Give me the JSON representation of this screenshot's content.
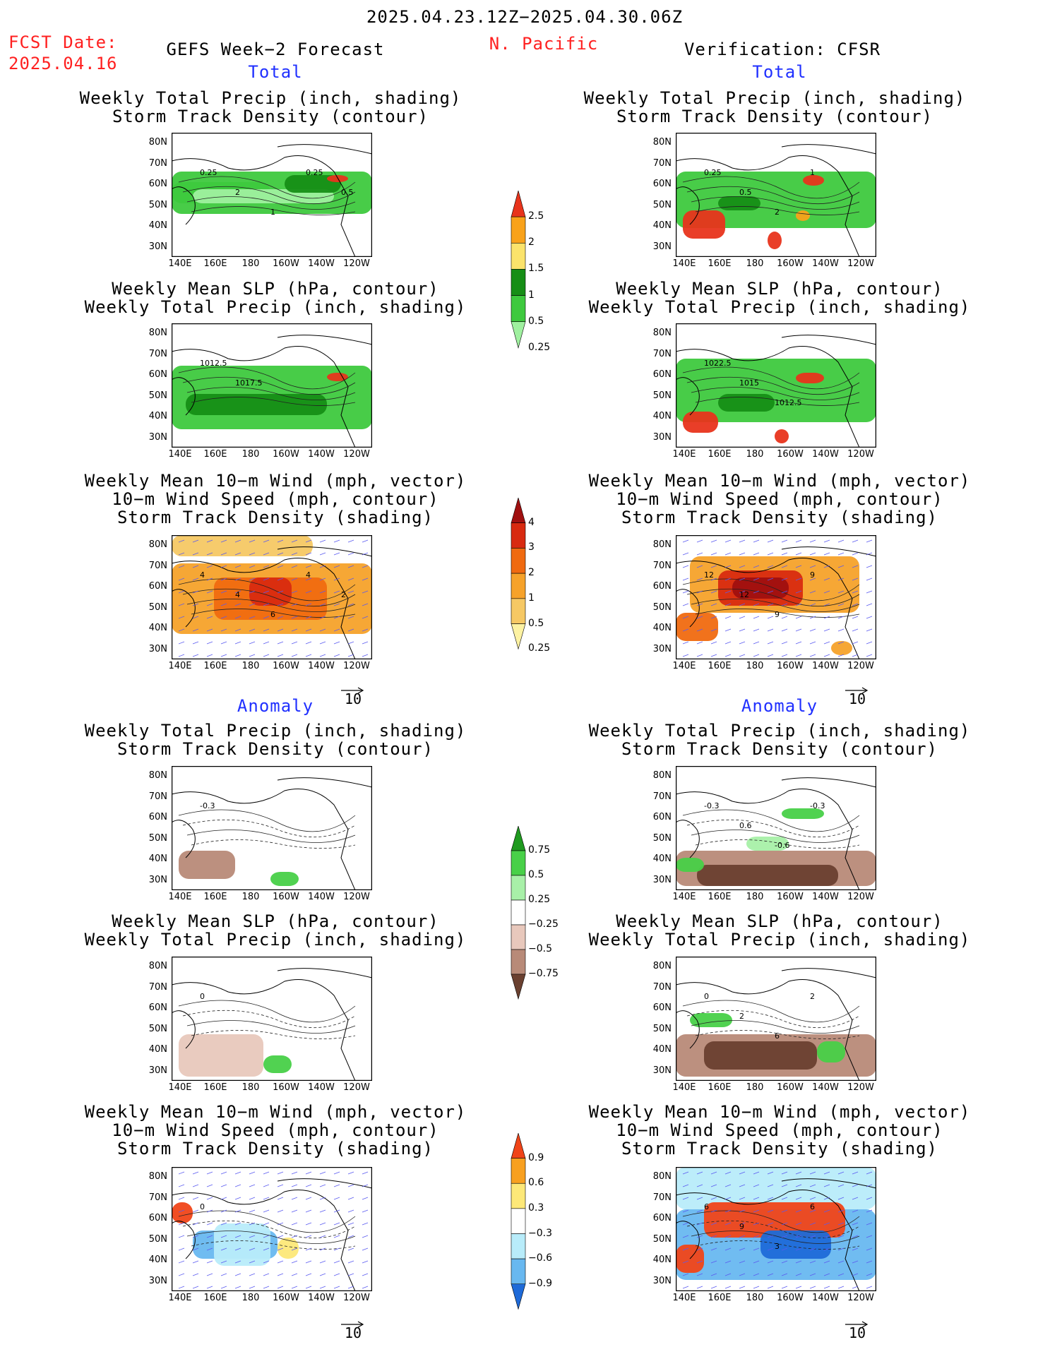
{
  "header": {
    "period": "2025.04.23.12Z−2025.04.30.06Z",
    "fcst_label": "FCST Date:",
    "fcst_date": "2025.04.16",
    "left_title": "GEFS Week−2 Forecast",
    "region": "N. Pacific",
    "right_title": "Verification: CFSR"
  },
  "sections": {
    "total": "Total",
    "anomaly": "Anomaly"
  },
  "titles": {
    "precip_storm": [
      "Weekly Total Precip (inch, shading)",
      "Storm Track Density (contour)"
    ],
    "slp_precip": [
      "Weekly Mean SLP (hPa, contour)",
      "Weekly Total Precip (inch, shading)"
    ],
    "wind_storm": [
      "Weekly Mean 10−m Wind (mph, vector)",
      "10−m Wind Speed (mph, contour)",
      "Storm Track Density (shading)"
    ]
  },
  "axes": {
    "lat_ticks": [
      "80N",
      "70N",
      "60N",
      "50N",
      "40N",
      "30N"
    ],
    "lon_ticks": [
      "140E",
      "160E",
      "180",
      "160W",
      "140W",
      "120W"
    ]
  },
  "wind_ref": "10",
  "colorbars": {
    "precip_total": {
      "labels": [
        "2.5",
        "2",
        "1.5",
        "1",
        "0.5",
        "0.25"
      ],
      "colors": [
        "#e8341c",
        "#f9a21a",
        "#fbe36b",
        "#168e16",
        "#3ec93e",
        "#9ff09f"
      ]
    },
    "storm_total": {
      "labels": [
        "4",
        "3",
        "2",
        "1",
        "0.5",
        "0.25"
      ],
      "colors": [
        "#a01010",
        "#d82a10",
        "#f06a10",
        "#f6a22a",
        "#f6c864",
        "#fdf2a2"
      ]
    },
    "precip_anom": {
      "labels": [
        "0.75",
        "0.5",
        "0.25",
        "−0.25",
        "−0.5",
        "−0.75"
      ],
      "colors": [
        "#1f9a1f",
        "#48d048",
        "#a8f0a8",
        "#ffffff",
        "#e8c8bc",
        "#b88a78",
        "#6a4030"
      ]
    },
    "storm_anom": {
      "labels": [
        "0.9",
        "0.6",
        "0.3",
        "−0.3",
        "−0.6",
        "−0.9"
      ],
      "colors": [
        "#f04418",
        "#f8a020",
        "#fde878",
        "#ffffff",
        "#b8ecfa",
        "#68b8f0",
        "#1e6ad8"
      ]
    }
  },
  "contour_labels": {
    "p1": [
      "0.25",
      "2",
      "1",
      "0.25",
      "0.5"
    ],
    "p2": [
      "0.25",
      "0.5",
      "2",
      "1"
    ],
    "p3": [
      "1012.5",
      "1017.5"
    ],
    "p4": [
      "1022.5",
      "1015",
      "1012.5"
    ],
    "p5": [
      "4",
      "4",
      "6",
      "4",
      "2"
    ],
    "p6": [
      "12",
      "12",
      "9",
      "9"
    ],
    "p7": [
      "-0.3"
    ],
    "p8": [
      "-0.3",
      "0.6",
      "-0.6",
      "-0.3"
    ],
    "p9": [
      "0"
    ],
    "p10": [
      "0",
      "2",
      "6",
      "2"
    ],
    "p11": [
      "0"
    ],
    "p12": [
      "6",
      "9",
      "3",
      "6"
    ]
  }
}
